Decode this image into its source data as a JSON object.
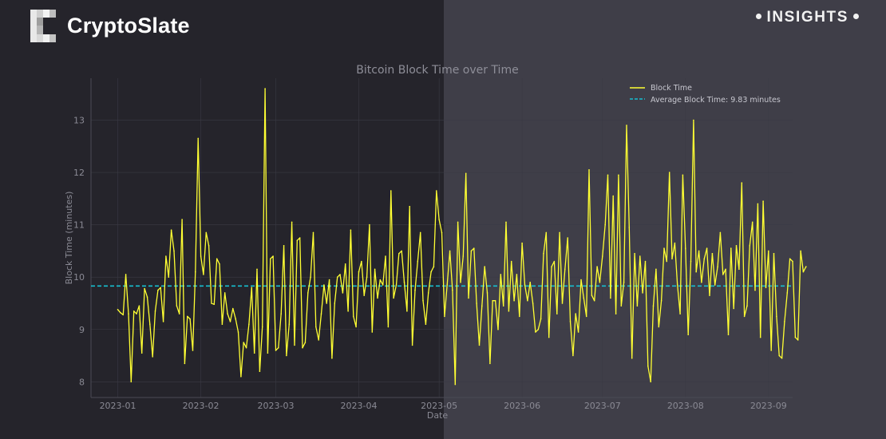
{
  "brand": {
    "name": "CryptoSlate"
  },
  "badge": {
    "label": "INSIGHTS"
  },
  "colors": {
    "series": "#ffff33",
    "average": "#17becf",
    "left_bg": "#25242b",
    "right_bg": "#3f3e48"
  },
  "chart_data": {
    "type": "line",
    "title": "Bitcoin Block Time over Time",
    "xlabel": "Date",
    "ylabel": "Block Time (minutes)",
    "ylim": [
      7.7,
      13.8
    ],
    "yticks": [
      8,
      9,
      10,
      11,
      12,
      13
    ],
    "xticks": [
      "2023-01",
      "2023-02",
      "2023-03",
      "2023-04",
      "2023-05",
      "2023-06",
      "2023-07",
      "2023-08",
      "2023-09"
    ],
    "x_range": [
      "2022-12-22",
      "2023-09-10"
    ],
    "grid": true,
    "legend_position": "top-right",
    "average": {
      "label": "Average Block Time: 9.83 minutes",
      "value": 9.83
    },
    "series": [
      {
        "name": "Block Time",
        "start_date": "2023-01-01",
        "values": [
          9.38,
          9.32,
          9.28,
          10.05,
          9.3,
          8.0,
          9.35,
          9.3,
          9.45,
          8.55,
          9.78,
          9.62,
          9.1,
          8.48,
          9.35,
          9.75,
          9.8,
          9.15,
          10.4,
          10.0,
          10.9,
          10.5,
          9.45,
          9.3,
          11.1,
          8.35,
          9.25,
          9.2,
          8.6,
          10.1,
          12.65,
          10.4,
          10.05,
          10.85,
          10.6,
          9.5,
          9.48,
          10.35,
          10.25,
          9.1,
          9.7,
          9.3,
          9.15,
          9.4,
          9.2,
          8.95,
          8.1,
          8.75,
          8.65,
          9.1,
          9.8,
          8.55,
          10.15,
          8.2,
          9.05,
          13.6,
          8.55,
          10.35,
          10.4,
          8.6,
          8.65,
          9.3,
          10.6,
          8.5,
          9.1,
          11.05,
          8.7,
          10.7,
          10.75,
          8.65,
          8.75,
          9.7,
          10.0,
          10.85,
          9.05,
          8.8,
          9.3,
          9.85,
          9.5,
          9.95,
          8.45,
          9.5,
          10.0,
          10.05,
          9.7,
          10.25,
          9.35,
          10.9,
          9.25,
          9.05,
          10.1,
          10.3,
          9.65,
          10.0,
          11.0,
          8.95,
          10.15,
          9.6,
          9.95,
          9.85,
          10.4,
          9.05,
          11.65,
          9.6,
          9.85,
          10.45,
          10.5,
          9.9,
          9.35,
          11.35,
          8.7,
          9.75,
          10.3,
          10.85,
          9.55,
          9.1,
          9.7,
          10.1,
          10.2,
          11.65,
          11.1,
          10.85,
          9.25,
          9.85,
          10.5,
          9.75,
          7.95,
          11.05,
          9.9,
          10.4,
          11.98,
          9.6,
          10.5,
          10.55,
          9.5,
          8.7,
          9.45,
          10.2,
          9.7,
          8.35,
          9.55,
          9.55,
          9.0,
          10.05,
          9.45,
          11.05,
          9.35,
          10.3,
          9.55,
          10.05,
          9.25,
          10.65,
          9.85,
          9.55,
          9.9,
          9.5,
          8.95,
          9.0,
          9.2,
          10.45,
          10.85,
          8.85,
          10.2,
          10.3,
          9.3,
          10.85,
          9.5,
          10.15,
          10.75,
          9.15,
          8.5,
          9.3,
          8.95,
          9.95,
          9.6,
          9.25,
          12.05,
          9.65,
          9.55,
          10.2,
          9.9,
          10.4,
          11.0,
          11.95,
          9.6,
          11.55,
          9.3,
          11.95,
          9.45,
          9.9,
          12.9,
          10.95,
          8.45,
          10.45,
          9.45,
          10.4,
          9.7,
          10.3,
          8.3,
          8.0,
          9.45,
          10.15,
          9.05,
          9.55,
          10.55,
          10.3,
          12.0,
          10.35,
          10.65,
          9.85,
          9.3,
          11.95,
          10.55,
          8.9,
          10.3,
          13.0,
          10.1,
          10.5,
          9.9,
          10.35,
          10.55,
          9.65,
          10.45,
          9.85,
          10.2,
          10.85,
          10.05,
          10.15,
          8.9,
          10.55,
          9.4,
          10.6,
          10.15,
          11.8,
          9.25,
          9.45,
          10.6,
          11.05,
          9.75,
          11.4,
          8.85,
          11.45,
          9.8,
          10.5,
          8.6,
          10.45,
          9.25,
          8.5,
          8.45,
          9.15,
          9.7,
          10.35,
          10.3,
          8.85,
          8.8,
          10.5,
          10.1,
          10.2
        ]
      }
    ]
  }
}
